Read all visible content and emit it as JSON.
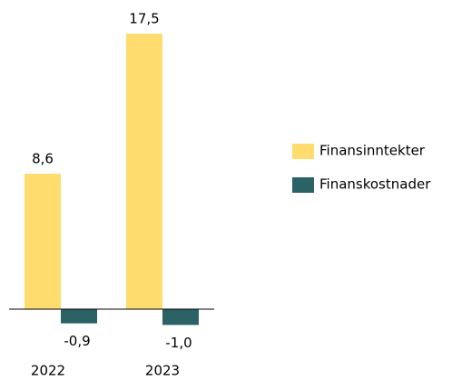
{
  "chart_data": {
    "type": "bar",
    "categories": [
      "2022",
      "2023"
    ],
    "series": [
      {
        "name": "Finansinntekter",
        "color": "#ffdc6e",
        "values": [
          8.6,
          17.5
        ],
        "value_labels": [
          "8,6",
          "17,5"
        ]
      },
      {
        "name": "Finanskostnader",
        "color": "#2b6266",
        "values": [
          -0.9,
          -1.0
        ],
        "value_labels": [
          "-0,9",
          "-1,0"
        ]
      }
    ],
    "ylim": [
      -1.5,
      18
    ],
    "legend": "right"
  }
}
